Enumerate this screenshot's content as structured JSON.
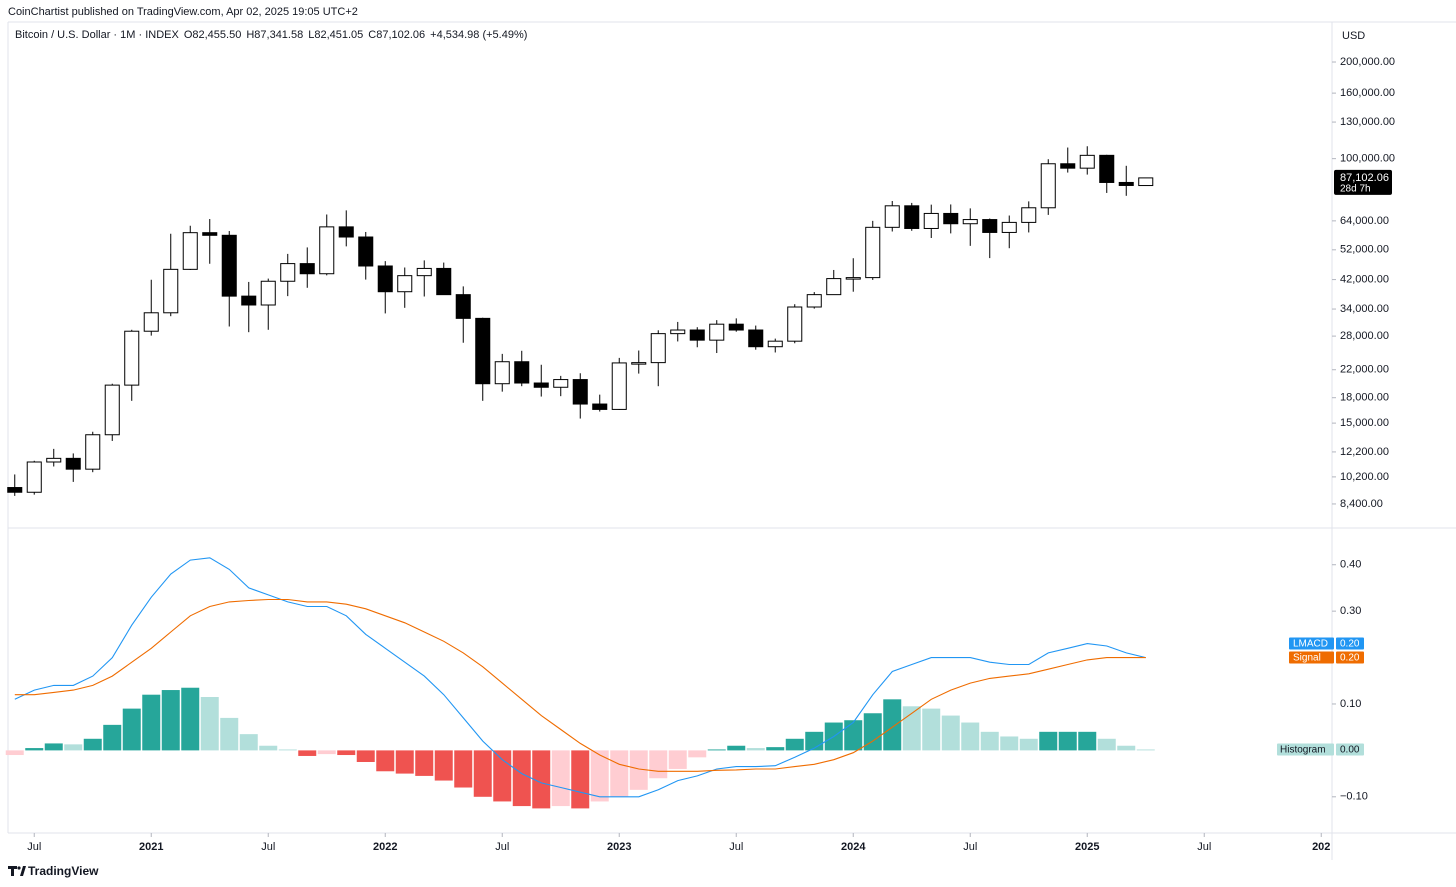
{
  "attribution": "CoinChartist published on TradingView.com, Apr 02, 2025 19:05 UTC+2",
  "footer": "TradingView",
  "chart_data": [
    {
      "type": "candlestick",
      "title": "Bitcoin / U.S. Dollar · 1M · INDEX",
      "ohlc_legend": [
        {
          "letter": "O",
          "label": "82,455.50"
        },
        {
          "letter": "H",
          "label": "87,341.58"
        },
        {
          "letter": "L",
          "label": "82,451.05"
        },
        {
          "letter": "C",
          "label": "87,102.06"
        }
      ],
      "change_label": "+4,534.98 (+5.49%)",
      "currency": "USD",
      "last_price_label": "87,102.06",
      "countdown": "28d 7h",
      "log_scale": true,
      "up_color": "#ffffff",
      "down_color": "#000000",
      "border_color": "#000000",
      "x": [
        "2020-06",
        "2020-07",
        "2020-08",
        "2020-09",
        "2020-10",
        "2020-11",
        "2020-12",
        "2021-01",
        "2021-02",
        "2021-03",
        "2021-04",
        "2021-05",
        "2021-06",
        "2021-07",
        "2021-08",
        "2021-09",
        "2021-10",
        "2021-11",
        "2021-12",
        "2022-01",
        "2022-02",
        "2022-03",
        "2022-04",
        "2022-05",
        "2022-06",
        "2022-07",
        "2022-08",
        "2022-09",
        "2022-10",
        "2022-11",
        "2022-12",
        "2023-01",
        "2023-02",
        "2023-03",
        "2023-04",
        "2023-05",
        "2023-06",
        "2023-07",
        "2023-08",
        "2023-09",
        "2023-10",
        "2023-11",
        "2023-12",
        "2024-01",
        "2024-02",
        "2024-03",
        "2024-04",
        "2024-05",
        "2024-06",
        "2024-07",
        "2024-08",
        "2024-09",
        "2024-10",
        "2024-11",
        "2024-12",
        "2025-01",
        "2025-02",
        "2025-03",
        "2025-04"
      ],
      "open": [
        9450,
        9135,
        11350,
        11650,
        10780,
        13800,
        19700,
        29000,
        33100,
        45200,
        58800,
        57700,
        37300,
        35000,
        41500,
        47100,
        43800,
        61300,
        57000,
        46300,
        38500,
        43200,
        45500,
        37700,
        31800,
        19900,
        23300,
        20000,
        19400,
        20500,
        17200,
        16550,
        23100,
        23150,
        28500,
        29250,
        27200,
        30500,
        29250,
        25950,
        27000,
        34500,
        37700,
        42300,
        42600,
        61100,
        71300,
        60600,
        67500,
        62700,
        64600,
        58900,
        63300,
        70300,
        96400,
        93400,
        102400,
        84300,
        82455.5
      ],
      "high": [
        10380,
        11450,
        12470,
        12070,
        14100,
        19900,
        29300,
        41950,
        58350,
        61800,
        64850,
        59500,
        41300,
        42300,
        50500,
        52900,
        67000,
        69000,
        59100,
        47950,
        45800,
        48200,
        47450,
        40000,
        31950,
        24650,
        25200,
        22800,
        21050,
        21450,
        18400,
        23950,
        25250,
        29200,
        31000,
        29850,
        31400,
        31800,
        30200,
        27500,
        35200,
        38400,
        45000,
        48950,
        64000,
        73800,
        72800,
        71900,
        72000,
        70000,
        65100,
        66500,
        73600,
        99600,
        108300,
        109300,
        102800,
        95000,
        87341.58
      ],
      "low": [
        8900,
        8980,
        10990,
        9840,
        10550,
        13200,
        17600,
        28100,
        32300,
        45000,
        47050,
        30000,
        28800,
        29300,
        37300,
        39600,
        43300,
        53300,
        42000,
        32950,
        34300,
        37200,
        37700,
        26700,
        17600,
        18800,
        19550,
        18150,
        18200,
        15500,
        16300,
        16500,
        21400,
        19550,
        26950,
        25850,
        24800,
        28900,
        25400,
        24900,
        26600,
        34100,
        37600,
        38500,
        41900,
        59300,
        59600,
        56600,
        58500,
        53500,
        49000,
        52600,
        58900,
        66800,
        90500,
        89200,
        78200,
        76600,
        82451.05
      ],
      "close": [
        9135,
        11350,
        11650,
        10780,
        13800,
        19700,
        29000,
        33100,
        45200,
        58800,
        57700,
        37300,
        35000,
        41500,
        47100,
        43800,
        61300,
        57000,
        46300,
        38500,
        43200,
        45500,
        37700,
        31800,
        19900,
        23300,
        20000,
        19400,
        20500,
        17200,
        16550,
        23100,
        23150,
        28500,
        29250,
        27200,
        30500,
        29250,
        25950,
        27000,
        34500,
        37700,
        42300,
        42600,
        61100,
        71300,
        60600,
        67500,
        62700,
        64600,
        58900,
        63300,
        70300,
        96400,
        93400,
        102400,
        84300,
        82500,
        87102.06
      ],
      "xlim": [
        "2020-06",
        "2026-01"
      ],
      "ylim": [
        7120,
        266500
      ],
      "yticks": [
        {
          "value": 200000,
          "label": "200,000.00"
        },
        {
          "value": 160000,
          "label": "160,000.00"
        },
        {
          "value": 130000,
          "label": "130,000.00"
        },
        {
          "value": 100000,
          "label": "100,000.00"
        },
        {
          "value": 64000,
          "label": "64,000.00"
        },
        {
          "value": 52000,
          "label": "52,000.00"
        },
        {
          "value": 42000,
          "label": "42,000.00"
        },
        {
          "value": 34000,
          "label": "34,000.00"
        },
        {
          "value": 28000,
          "label": "28,000.00"
        },
        {
          "value": 22000,
          "label": "22,000.00"
        },
        {
          "value": 18000,
          "label": "18,000.00"
        },
        {
          "value": 15000,
          "label": "15,000.00"
        },
        {
          "value": 12200,
          "label": "12,200.00"
        },
        {
          "value": 10200,
          "label": "10,200.00"
        },
        {
          "value": 8400,
          "label": "8,400.00"
        }
      ]
    },
    {
      "type": "macd",
      "x": [
        "2020-06",
        "2020-07",
        "2020-08",
        "2020-09",
        "2020-10",
        "2020-11",
        "2020-12",
        "2021-01",
        "2021-02",
        "2021-03",
        "2021-04",
        "2021-05",
        "2021-06",
        "2021-07",
        "2021-08",
        "2021-09",
        "2021-10",
        "2021-11",
        "2021-12",
        "2022-01",
        "2022-02",
        "2022-03",
        "2022-04",
        "2022-05",
        "2022-06",
        "2022-07",
        "2022-08",
        "2022-09",
        "2022-10",
        "2022-11",
        "2022-12",
        "2023-01",
        "2023-02",
        "2023-03",
        "2023-04",
        "2023-05",
        "2023-06",
        "2023-07",
        "2023-08",
        "2023-09",
        "2023-10",
        "2023-11",
        "2023-12",
        "2024-01",
        "2024-02",
        "2024-03",
        "2024-04",
        "2024-05",
        "2024-06",
        "2024-07",
        "2024-08",
        "2024-09",
        "2024-10",
        "2024-11",
        "2024-12",
        "2025-01",
        "2025-02",
        "2025-03",
        "2025-04"
      ],
      "histogram": {
        "name": "Histogram",
        "value_label": "0.00",
        "values": [
          -0.01,
          0.005,
          0.015,
          0.013,
          0.025,
          0.055,
          0.09,
          0.12,
          0.13,
          0.135,
          0.115,
          0.07,
          0.035,
          0.01,
          0.002,
          -0.012,
          -0.008,
          -0.01,
          -0.025,
          -0.045,
          -0.05,
          -0.055,
          -0.065,
          -0.08,
          -0.1,
          -0.11,
          -0.12,
          -0.125,
          -0.12,
          -0.125,
          -0.11,
          -0.1,
          -0.085,
          -0.06,
          -0.04,
          -0.015,
          0.002,
          0.01,
          0.005,
          0.007,
          0.025,
          0.04,
          0.06,
          0.065,
          0.08,
          0.11,
          0.095,
          0.09,
          0.075,
          0.06,
          0.04,
          0.03,
          0.025,
          0.04,
          0.04,
          0.04,
          0.025,
          0.01,
          0.002
        ],
        "colors": [
          "#ffcdd2",
          "#26a69a",
          "#26a69a",
          "#b2dfdb",
          "#26a69a",
          "#26a69a",
          "#26a69a",
          "#26a69a",
          "#26a69a",
          "#26a69a",
          "#b2dfdb",
          "#b2dfdb",
          "#b2dfdb",
          "#b2dfdb",
          "#b2dfdb",
          "#ef5350",
          "#ffcdd2",
          "#ef5350",
          "#ef5350",
          "#ef5350",
          "#ef5350",
          "#ef5350",
          "#ef5350",
          "#ef5350",
          "#ef5350",
          "#ef5350",
          "#ef5350",
          "#ef5350",
          "#ffcdd2",
          "#ef5350",
          "#ffcdd2",
          "#ffcdd2",
          "#ffcdd2",
          "#ffcdd2",
          "#ffcdd2",
          "#ffcdd2",
          "#26a69a",
          "#26a69a",
          "#b2dfdb",
          "#26a69a",
          "#26a69a",
          "#26a69a",
          "#26a69a",
          "#26a69a",
          "#26a69a",
          "#26a69a",
          "#b2dfdb",
          "#b2dfdb",
          "#b2dfdb",
          "#b2dfdb",
          "#b2dfdb",
          "#b2dfdb",
          "#b2dfdb",
          "#26a69a",
          "#26a69a",
          "#26a69a",
          "#b2dfdb",
          "#b2dfdb",
          "#b2dfdb"
        ],
        "label_color": "#b2dfdb"
      },
      "series": [
        {
          "name": "LMACD",
          "color": "#2196f3",
          "value_label": "0.20",
          "values": [
            0.11,
            0.13,
            0.14,
            0.14,
            0.16,
            0.2,
            0.27,
            0.33,
            0.38,
            0.41,
            0.415,
            0.39,
            0.35,
            0.335,
            0.32,
            0.31,
            0.31,
            0.29,
            0.25,
            0.22,
            0.19,
            0.16,
            0.12,
            0.07,
            0.02,
            -0.02,
            -0.05,
            -0.07,
            -0.08,
            -0.09,
            -0.1,
            -0.1,
            -0.1,
            -0.085,
            -0.065,
            -0.055,
            -0.04,
            -0.035,
            -0.035,
            -0.033,
            -0.015,
            0.005,
            0.03,
            0.06,
            0.12,
            0.17,
            0.185,
            0.2,
            0.2,
            0.2,
            0.19,
            0.185,
            0.185,
            0.21,
            0.22,
            0.23,
            0.225,
            0.21,
            0.2
          ]
        },
        {
          "name": "Signal",
          "color": "#ef6c00",
          "value_label": "0.20",
          "values": [
            0.12,
            0.12,
            0.125,
            0.13,
            0.14,
            0.16,
            0.19,
            0.22,
            0.255,
            0.29,
            0.31,
            0.32,
            0.323,
            0.325,
            0.325,
            0.32,
            0.32,
            0.315,
            0.305,
            0.29,
            0.275,
            0.255,
            0.235,
            0.21,
            0.18,
            0.145,
            0.11,
            0.075,
            0.045,
            0.015,
            -0.01,
            -0.03,
            -0.04,
            -0.045,
            -0.045,
            -0.045,
            -0.043,
            -0.042,
            -0.04,
            -0.04,
            -0.035,
            -0.03,
            -0.02,
            -0.005,
            0.02,
            0.05,
            0.08,
            0.11,
            0.13,
            0.145,
            0.155,
            0.16,
            0.165,
            0.175,
            0.185,
            0.195,
            0.2,
            0.2,
            0.2
          ]
        }
      ],
      "xlim": [
        "2020-06",
        "2026-01"
      ],
      "ylim": [
        -0.178,
        0.477
      ],
      "yticks": [
        {
          "value": 0.4,
          "label": "0.40"
        },
        {
          "value": 0.3,
          "label": "0.30"
        },
        {
          "value": 0.1,
          "label": "0.10"
        },
        {
          "value": -0.1,
          "label": "−0.10"
        }
      ],
      "xticks": [
        {
          "value": "2020-07",
          "label": "Jul"
        },
        {
          "value": "2021-01",
          "label": "2021"
        },
        {
          "value": "2021-07",
          "label": "Jul"
        },
        {
          "value": "2022-01",
          "label": "2022"
        },
        {
          "value": "2022-07",
          "label": "Jul"
        },
        {
          "value": "2023-01",
          "label": "2023"
        },
        {
          "value": "2023-07",
          "label": "Jul"
        },
        {
          "value": "2024-01",
          "label": "2024"
        },
        {
          "value": "2024-07",
          "label": "Jul"
        },
        {
          "value": "2025-01",
          "label": "2025"
        },
        {
          "value": "2025-07",
          "label": "Jul"
        },
        {
          "value": "2026-01",
          "label": "202"
        }
      ]
    }
  ]
}
